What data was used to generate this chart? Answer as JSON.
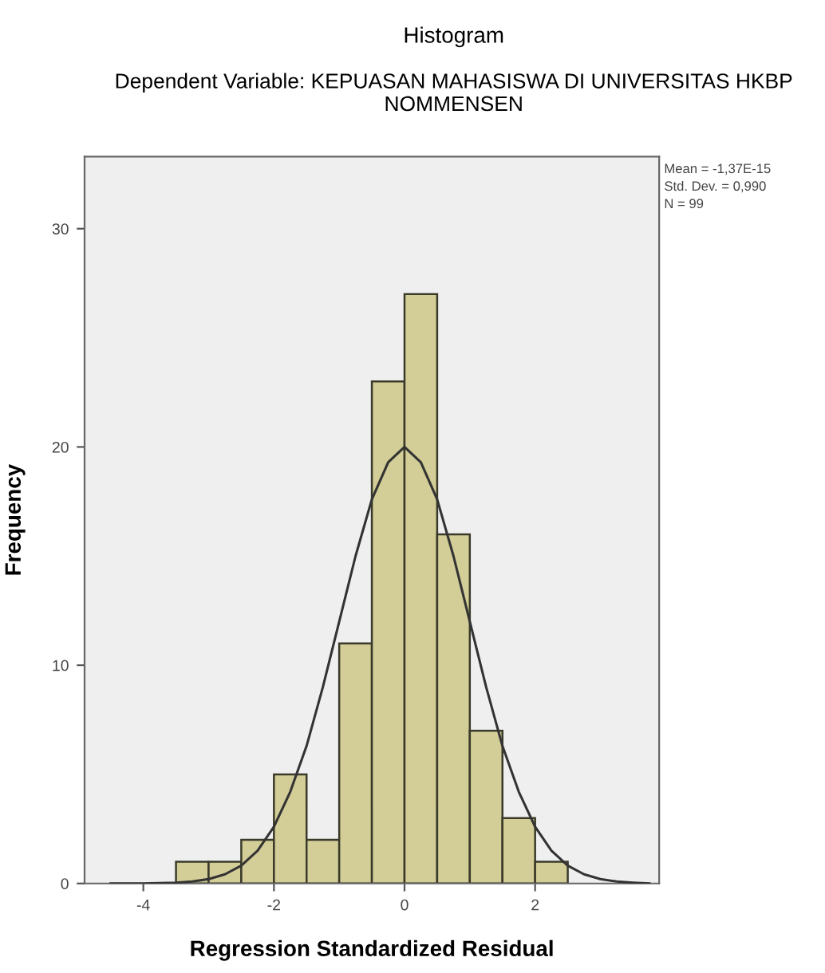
{
  "chart_data": {
    "type": "histogram",
    "title": "Histogram",
    "subtitle": "Dependent Variable: KEPUASAN MAHASISWA DI UNIVERSITAS HKBP NOMMENSEN",
    "xlabel": "Regression Standardized Residual",
    "ylabel": "Frequency",
    "bins": [
      -3.5,
      -3.0,
      -2.5,
      -2.0,
      -1.5,
      -1.0,
      -0.5,
      0.0,
      0.5,
      1.0,
      1.5,
      2.0,
      2.5
    ],
    "values": [
      1,
      1,
      2,
      5,
      2,
      11,
      23,
      27,
      16,
      7,
      3,
      1
    ],
    "color": "#d3ce97",
    "series": [
      {
        "type": "line",
        "color": "#333333",
        "x": [
          -4.5,
          -4.0,
          -3.5,
          -3.25,
          -3.0,
          -2.75,
          -2.5,
          -2.25,
          -2.0,
          -1.75,
          -1.5,
          -1.25,
          -1.0,
          -0.75,
          -0.5,
          -0.25,
          0.0,
          0.25,
          0.5,
          0.75,
          1.0,
          1.25,
          1.5,
          1.75,
          2.0,
          2.25,
          2.5,
          2.75,
          3.0,
          3.25,
          3.5,
          3.75
        ],
        "values": [
          0,
          0,
          0.04,
          0.09,
          0.2,
          0.42,
          0.82,
          1.5,
          2.6,
          4.2,
          6.3,
          9.0,
          12.0,
          15.0,
          17.6,
          19.3,
          20,
          19.3,
          17.6,
          15.0,
          12.0,
          9.0,
          6.3,
          4.2,
          2.6,
          1.5,
          0.82,
          0.42,
          0.2,
          0.09,
          0.04,
          0
        ]
      }
    ],
    "xlim": [
      -4.9,
      3.9
    ],
    "ylim": [
      0,
      33.3
    ],
    "xticks": [
      -4,
      -2,
      0,
      2
    ],
    "yticks": [
      0,
      10,
      20,
      30
    ],
    "grid": false,
    "annotations": [
      "Mean = -1,37E-15",
      "Std. Dev. = 0,990",
      "N = 99"
    ]
  }
}
